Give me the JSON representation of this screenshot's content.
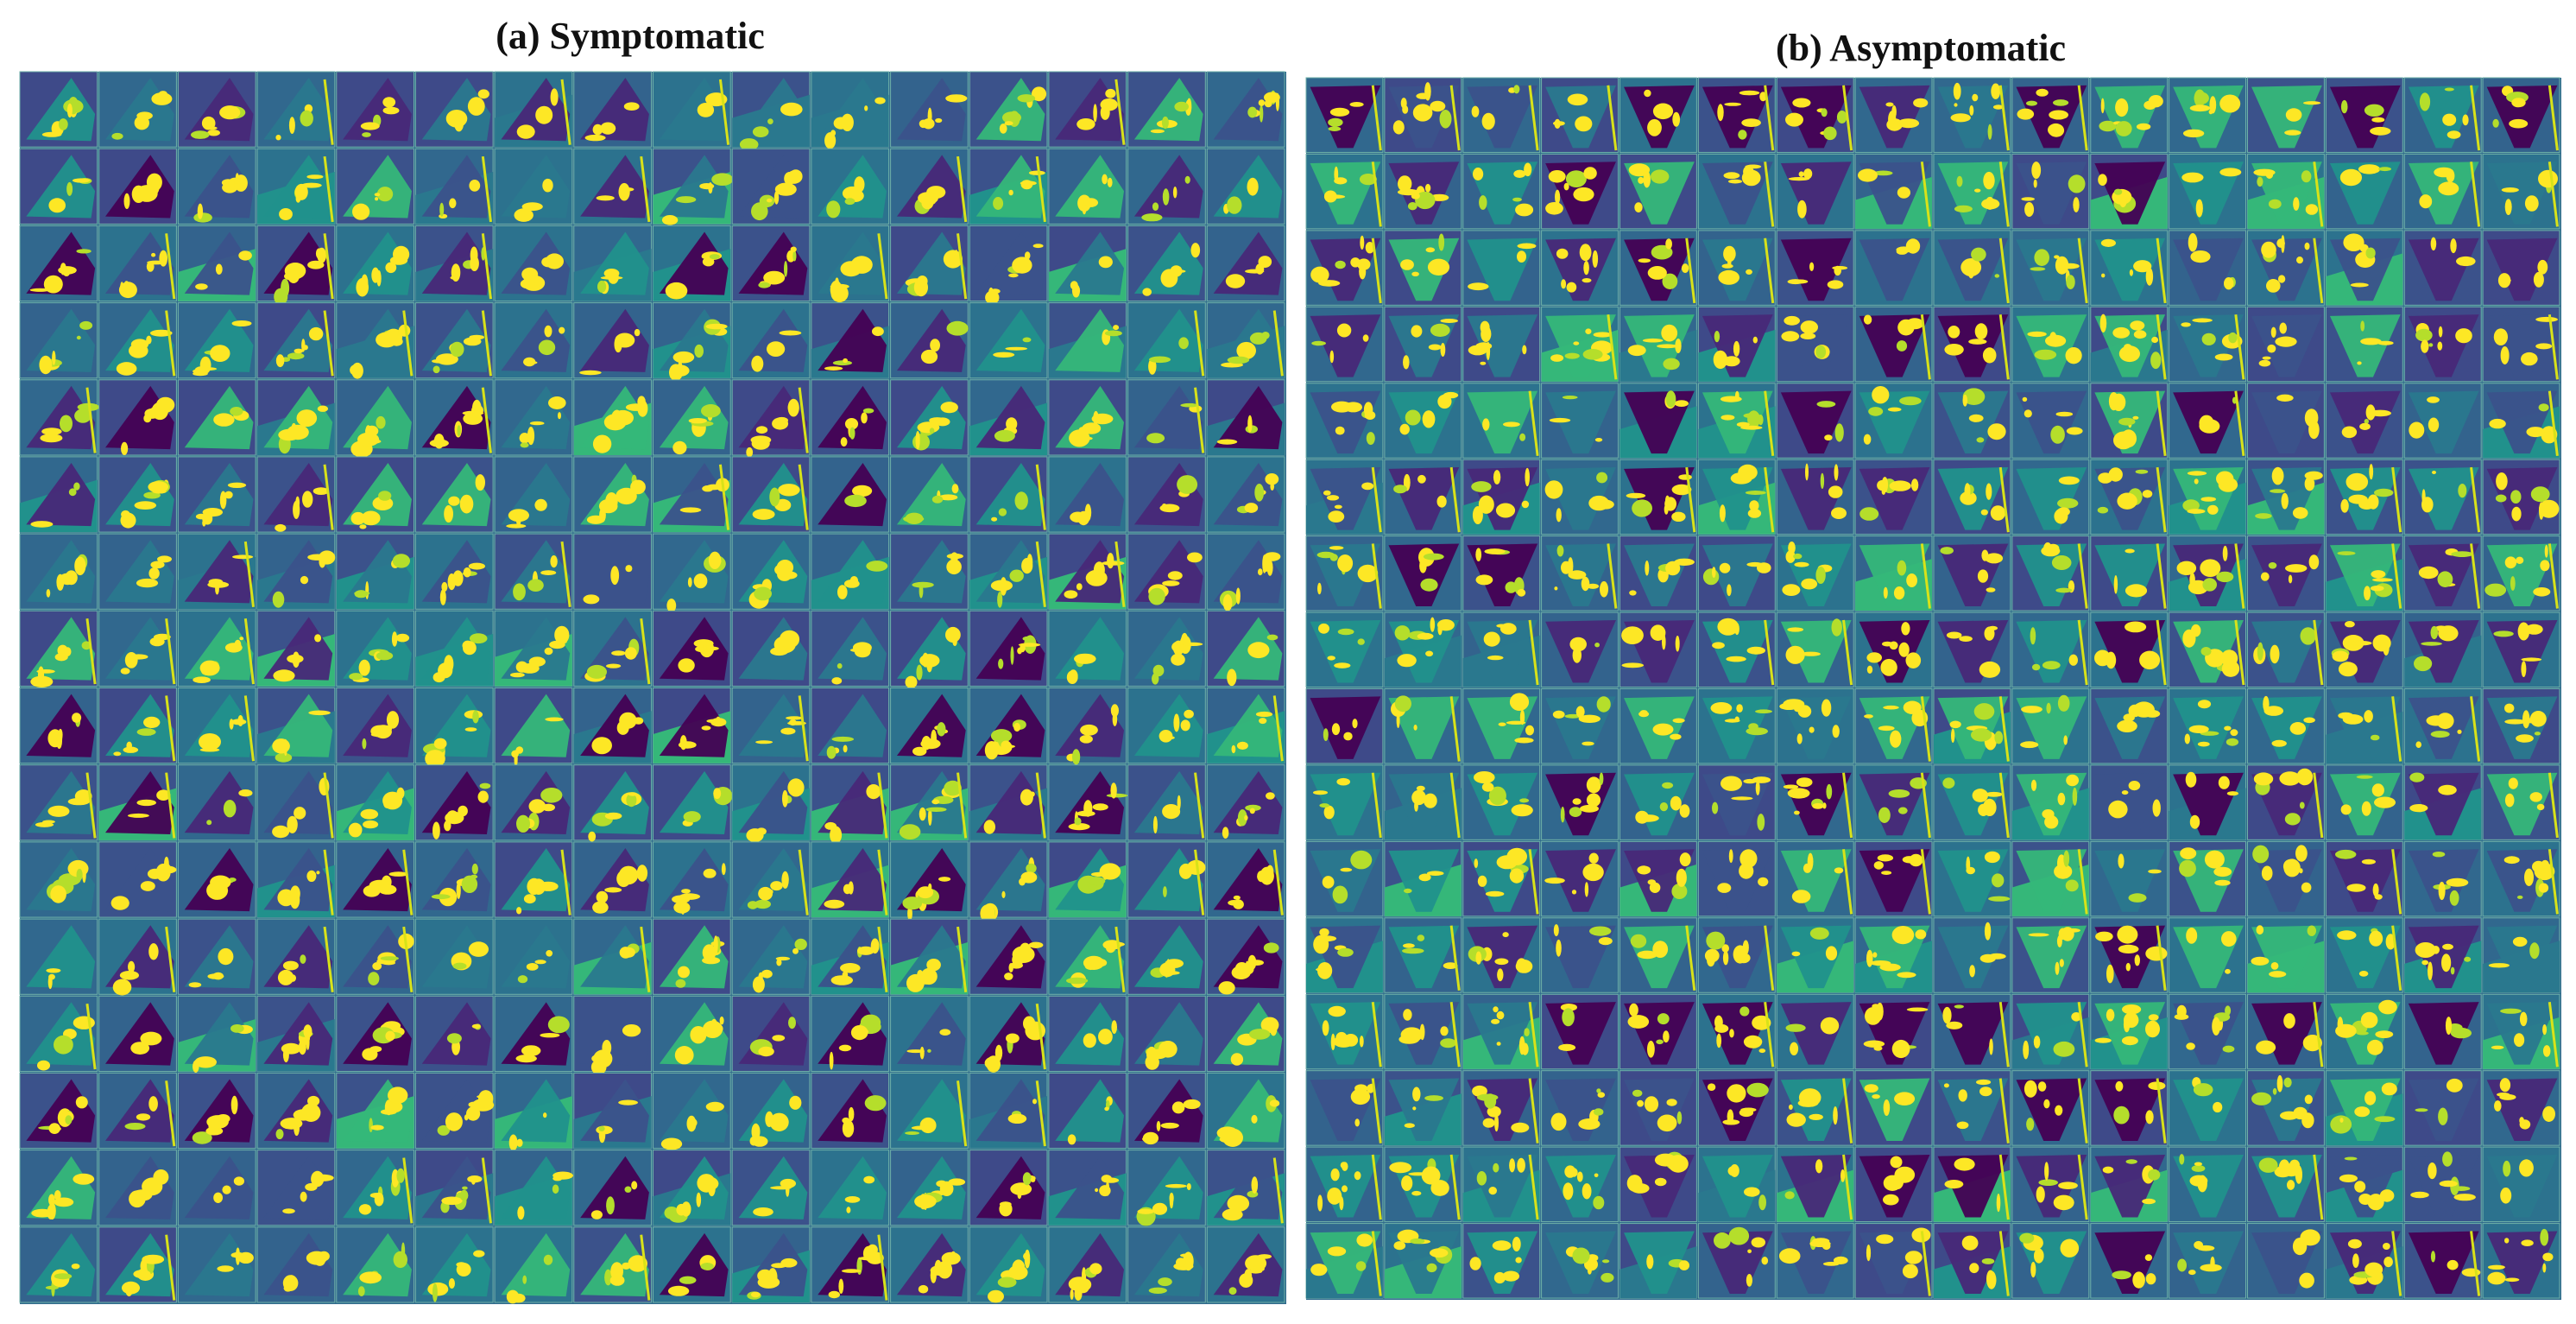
{
  "figure": {
    "panels": [
      {
        "title": "(a) Symptomatic"
      },
      {
        "title": "(b) Asymptomatic"
      }
    ]
  }
}
